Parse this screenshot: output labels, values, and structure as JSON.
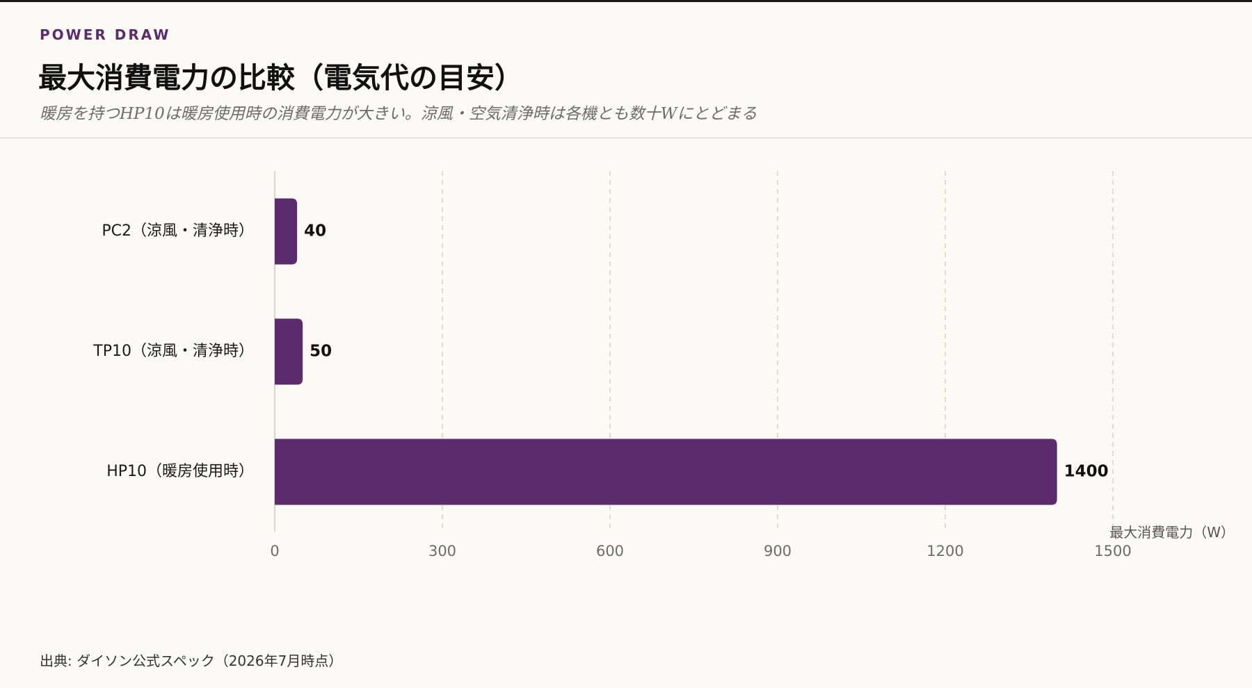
{
  "header": {
    "eyebrow": "POWER DRAW",
    "title": "最大消費電力の比較（電気代の目安）",
    "subtitle": "暖房を持つHP10は暖房使用時の消費電力が大きい。涼風・空気清浄時は各機とも数十Wにとどまる"
  },
  "footer": {
    "source": "出典: ダイソン公式スペック（2026年7月時点）"
  },
  "colors": {
    "bar": "#5c2b6b",
    "grid": "#d8d2c6",
    "axis": "#cfc8bb",
    "background": "#fbfaf7"
  },
  "chart_data": {
    "type": "bar",
    "orientation": "horizontal",
    "categories": [
      "PC2（涼風・清浄時）",
      "TP10（涼風・清浄時）",
      "HP10（暖房使用時）"
    ],
    "values": [
      40,
      50,
      1400
    ],
    "data_labels": [
      "40",
      "50",
      "1400"
    ],
    "xlabel": "最大消費電力（W）",
    "xlim": [
      0,
      1500
    ],
    "xticks": [
      0,
      300,
      600,
      900,
      1200,
      1500
    ],
    "grid": "vertical dashed"
  }
}
